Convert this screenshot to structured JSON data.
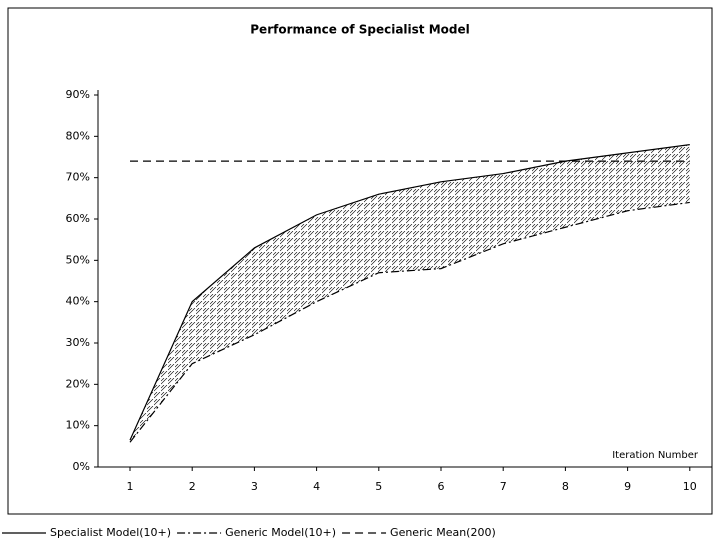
{
  "chart_data": {
    "type": "line",
    "title": "Performance of Specialist Model",
    "x_label": "Iteration Number",
    "categories": [
      "1",
      "2",
      "3",
      "4",
      "5",
      "6",
      "7",
      "8",
      "9",
      "10"
    ],
    "series": [
      {
        "name": "Specialist Model(10+)",
        "color": "#000000",
        "dash": "solid",
        "values": [
          6.5,
          40,
          53,
          61,
          66,
          69,
          71,
          74,
          76,
          78
        ]
      },
      {
        "name": "Generic Model(10+)",
        "color": "#000000",
        "dash": "dashdot",
        "values": [
          6,
          25,
          32,
          40,
          47,
          48,
          54,
          58,
          62,
          64
        ]
      },
      {
        "name": "Generic Mean(200)",
        "color": "#000000",
        "dash": "dashed",
        "values": [
          74,
          74,
          74,
          74,
          74,
          74,
          74,
          74,
          74,
          74
        ]
      }
    ],
    "ylim": [
      0,
      90
    ],
    "yticks": [
      {
        "value": 0,
        "label": "0%"
      },
      {
        "value": 10,
        "label": "10%"
      },
      {
        "value": 20,
        "label": "20%"
      },
      {
        "value": 30,
        "label": "30%"
      },
      {
        "value": 40,
        "label": "40%"
      },
      {
        "value": 50,
        "label": "50%"
      },
      {
        "value": 60,
        "label": "60%"
      },
      {
        "value": 70,
        "label": "70%"
      },
      {
        "value": 80,
        "label": "80%"
      },
      {
        "value": 90,
        "label": "90%"
      }
    ],
    "shade_between": true
  }
}
